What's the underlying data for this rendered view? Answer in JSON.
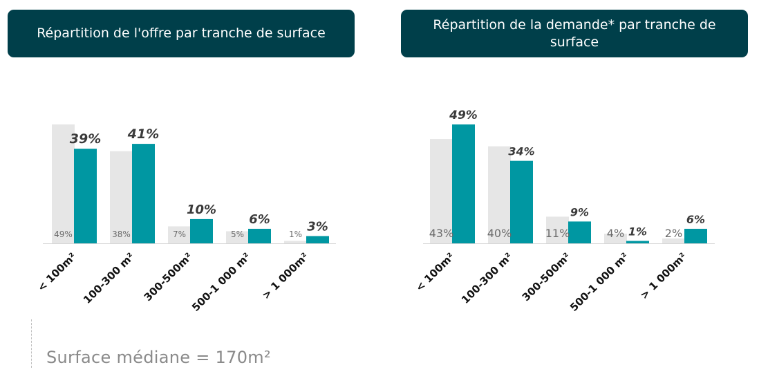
{
  "colors": {
    "header_bg": "#003f4a",
    "teal": "#0097a2",
    "grey": "#e6e6e6"
  },
  "chart_data": [
    {
      "type": "bar",
      "title": "Répartition de l'offre par tranche de surface",
      "categories": [
        "< 100m²",
        "100-300 m²",
        "300-500m²",
        "500-1 000 m²",
        "> 1 000m²"
      ],
      "series": [
        {
          "values": [
            49,
            38,
            7,
            5,
            1
          ],
          "labels": [
            "49%",
            "38%",
            "7%",
            "5%",
            "1%"
          ]
        },
        {
          "values": [
            39,
            41,
            10,
            6,
            3
          ],
          "labels": [
            "39%",
            "41%",
            "10%",
            "6%",
            "3%"
          ]
        }
      ],
      "xlabel": "",
      "ylabel": "",
      "ylim": [
        0,
        50
      ],
      "grid": false
    },
    {
      "type": "bar",
      "title": "Répartition de la demande* par tranche de surface",
      "categories": [
        "< 100m²",
        "100-300 m²",
        "300-500m²",
        "500-1 000 m²",
        "> 1 000m²"
      ],
      "series": [
        {
          "values": [
            43,
            40,
            11,
            4,
            2
          ],
          "labels": [
            "43%",
            "40%",
            "11%",
            "4%",
            "2%"
          ]
        },
        {
          "values": [
            49,
            34,
            9,
            1,
            6
          ],
          "labels": [
            "49%",
            "34%",
            "9%",
            "1%",
            "6%"
          ]
        }
      ],
      "xlabel": "",
      "ylabel": "",
      "ylim": [
        0,
        50
      ],
      "grid": false
    }
  ],
  "footer": {
    "median": "Surface médiane = 170m²"
  }
}
